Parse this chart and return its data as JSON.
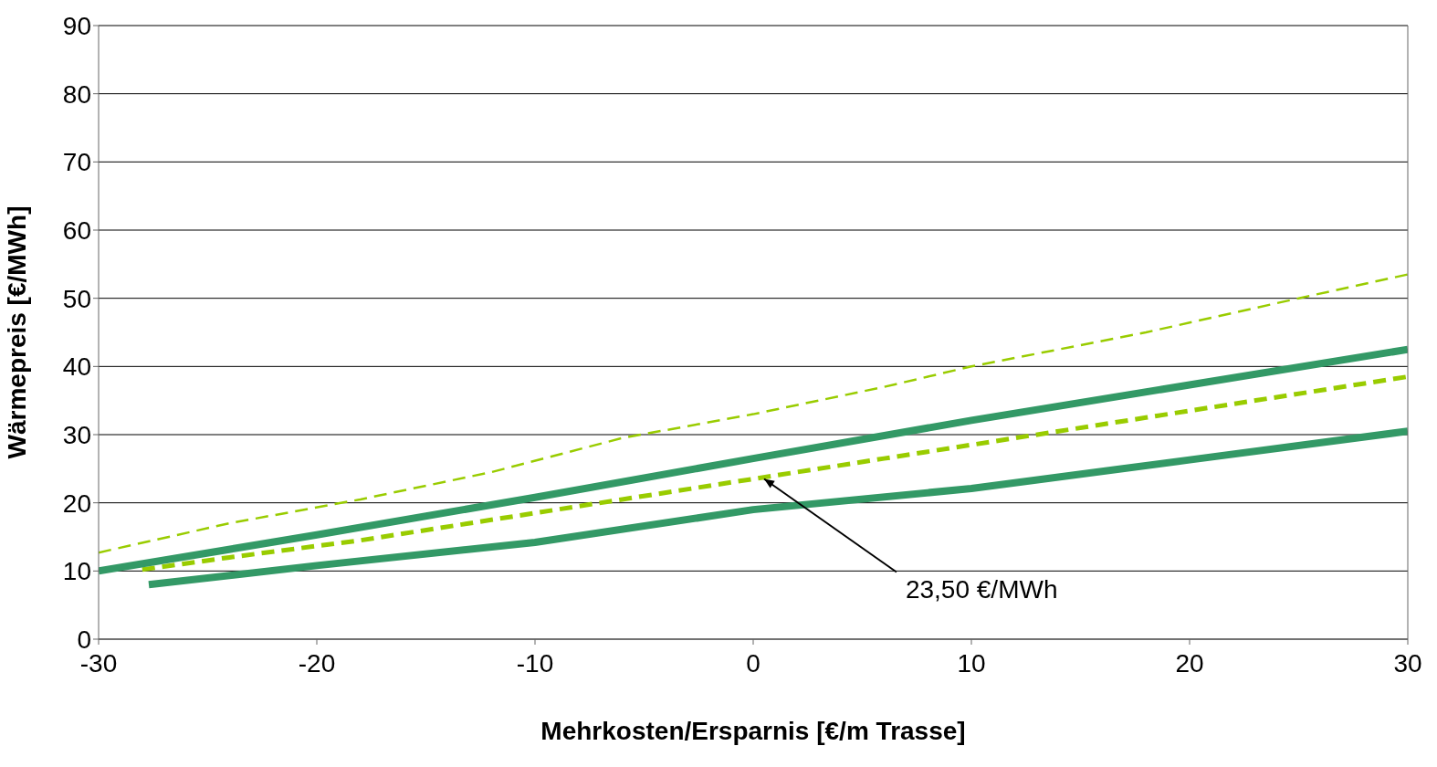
{
  "chart_data": {
    "type": "line",
    "xlabel": "Mehrkosten/Ersparnis [€/m Trasse]",
    "ylabel": "Wärmepreis [€/MWh]",
    "xlim": [
      -30,
      30
    ],
    "xticks": [
      -30,
      -20,
      -10,
      0,
      10,
      20,
      30
    ],
    "ylim": [
      0,
      90
    ],
    "yticks": [
      0,
      10,
      20,
      30,
      40,
      50,
      60,
      70,
      80,
      90
    ],
    "grid": "y",
    "legend": false,
    "marker": "none",
    "series": [
      {
        "color": "#99cc00",
        "line_style": "dashed",
        "x": [
          -30,
          -24,
          -18,
          -12,
          -6,
          0,
          6,
          10,
          18,
          25,
          30
        ],
        "values": [
          12.7,
          17,
          20.5,
          24.5,
          29.5,
          33,
          37,
          40,
          45,
          50,
          53.5
        ]
      },
      {
        "color": "#99cc00",
        "line_style": "dashed",
        "x": [
          -28,
          -24,
          -18,
          -12,
          -6,
          0,
          6,
          12,
          18,
          24,
          30
        ],
        "values": [
          10.2,
          12,
          14.5,
          17.5,
          20.5,
          23.5,
          26.5,
          29.5,
          32.5,
          35.5,
          38.5
        ]
      },
      {
        "color": "#339966",
        "line_style": "solid",
        "x": [
          -30,
          -20,
          -10,
          0,
          10,
          20,
          30
        ],
        "values": [
          10,
          15.3,
          20.8,
          26.5,
          32.1,
          37.3,
          42.5
        ]
      },
      {
        "color": "#339966",
        "line_style": "solid",
        "x": [
          -27.7,
          -20,
          -10,
          0,
          10,
          20,
          30
        ],
        "values": [
          8,
          10.8,
          14.2,
          19,
          22.1,
          26.3,
          30.5
        ]
      }
    ],
    "annotations": [
      {
        "text": "23,50 €/MWh",
        "x": 0.5,
        "y": 23.5
      }
    ]
  }
}
